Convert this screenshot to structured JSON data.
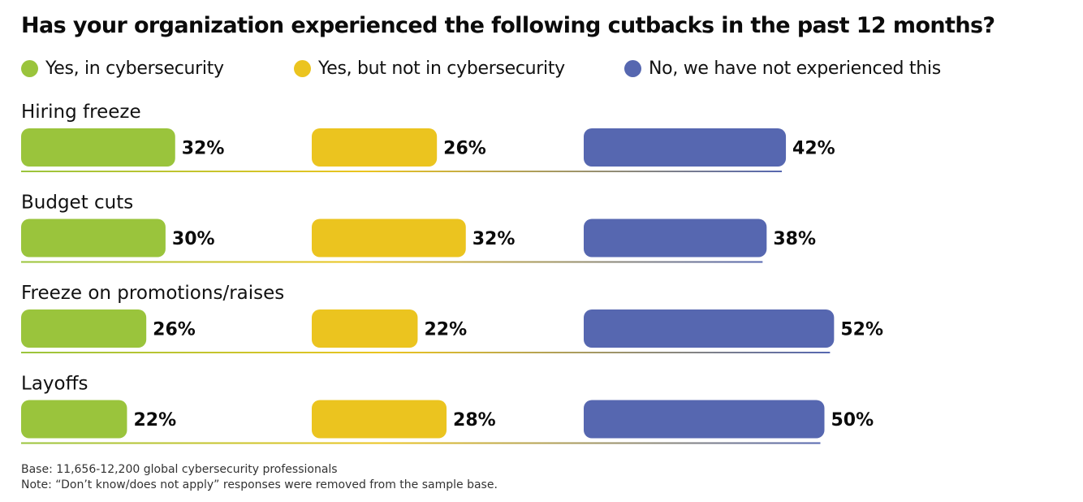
{
  "title": "Has your organization experienced the following cutbacks in the past 12 months?",
  "legend": [
    {
      "label": "Yes, in cybersecurity",
      "color": "#9AC43C"
    },
    {
      "label": "Yes, but not in cybersecurity",
      "color": "#EBC41F"
    },
    {
      "label": "No, we have not experienced this",
      "color": "#5667B0"
    }
  ],
  "footnotes": {
    "base": "Base: 11,656-12,200 global cybersecurity professionals",
    "note": "Note: “Don’t know/does not apply” responses were removed from the sample base."
  },
  "chart_data": {
    "type": "bar",
    "orientation": "horizontal",
    "title": "Has your organization experienced the following cutbacks in the past 12 months?",
    "categories": [
      "Hiring freeze",
      "Budget cuts",
      "Freeze on promotions/raises",
      "Layoffs"
    ],
    "series": [
      {
        "name": "Yes, in cybersecurity",
        "color": "#9AC43C",
        "values": [
          32,
          30,
          26,
          22
        ]
      },
      {
        "name": "Yes, but not in cybersecurity",
        "color": "#EBC41F",
        "values": [
          26,
          32,
          22,
          28
        ]
      },
      {
        "name": "No, we have not experienced this",
        "color": "#5667B0",
        "values": [
          42,
          38,
          52,
          50
        ]
      }
    ],
    "value_format": "{v}%",
    "unit": "%",
    "legend_position": "top",
    "grid": false,
    "xlabel": "",
    "ylabel": ""
  }
}
